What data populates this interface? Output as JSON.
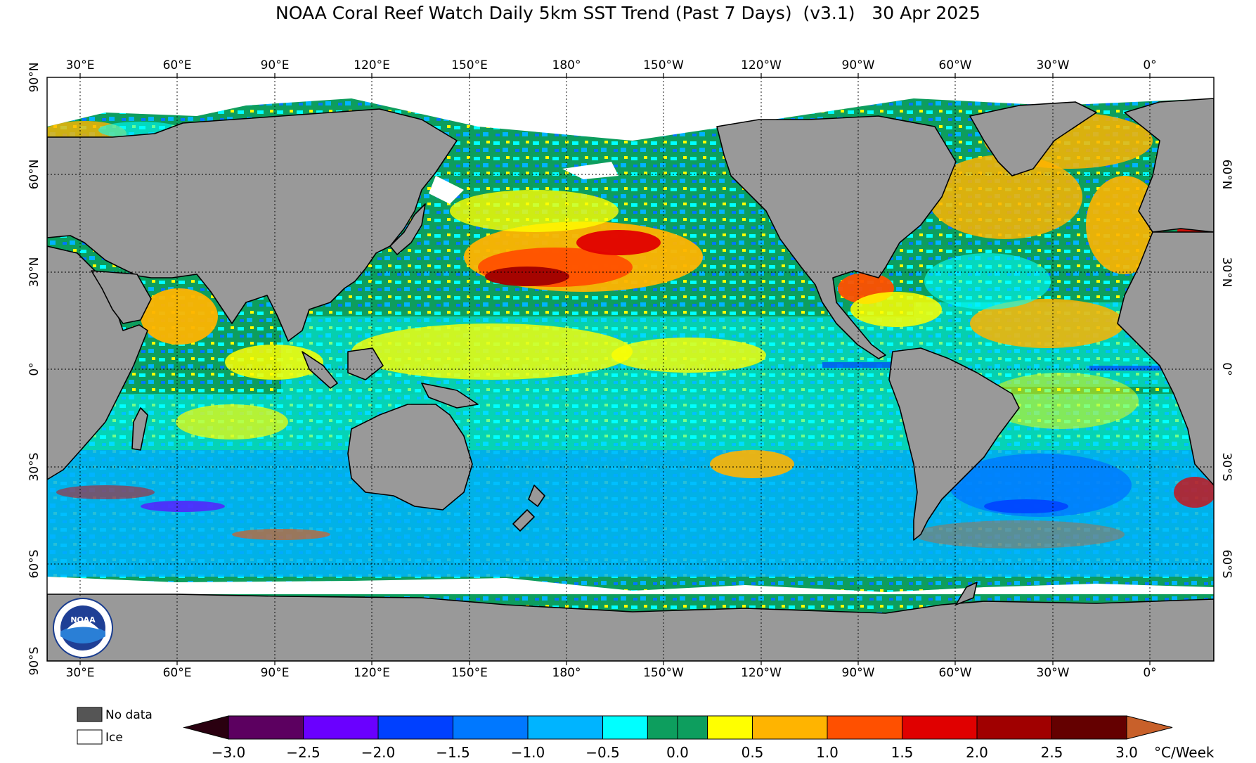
{
  "title": "NOAA Coral Reef Watch Daily 5km SST Trend (Past 7 Days)  (v3.1)   30 Apr 2025",
  "map": {
    "lon_labels": [
      "30°E",
      "60°E",
      "90°E",
      "120°E",
      "150°E",
      "180°",
      "150°W",
      "120°W",
      "90°W",
      "60°W",
      "30°W",
      "0°"
    ],
    "lat_labels_left": [
      "90°N",
      "60°N",
      "30°N",
      "0°",
      "30°S",
      "60°S",
      "90°S"
    ],
    "lat_labels_right": [
      "60°N",
      "30°N",
      "0°",
      "30°S",
      "60°S"
    ],
    "colors": {
      "land": "#999999",
      "ice": "#ffffff",
      "no_data": "#555555",
      "ocean_base": "#0d9e5e"
    },
    "logo_text": "NOAA"
  },
  "legend": {
    "no_data_label": "No data",
    "ice_label": "Ice"
  },
  "colorbar": {
    "unit": "°C/Week",
    "tick_labels": [
      "−3.0",
      "−2.5",
      "−2.0",
      "−1.5",
      "−1.0",
      "−0.5",
      "0.0",
      "0.5",
      "1.0",
      "1.5",
      "2.0",
      "2.5",
      "3.0"
    ],
    "min_color": "#2a0010",
    "max_color": "#c8602a",
    "bins": [
      {
        "from": -3.0,
        "to": -2.5,
        "color": "#5c0060"
      },
      {
        "from": -2.5,
        "to": -2.0,
        "color": "#6a00ff"
      },
      {
        "from": -2.0,
        "to": -1.5,
        "color": "#0040ff"
      },
      {
        "from": -1.5,
        "to": -1.0,
        "color": "#0078ff"
      },
      {
        "from": -1.0,
        "to": -0.5,
        "color": "#00b4ff"
      },
      {
        "from": -0.5,
        "to": -0.2,
        "color": "#00ffff"
      },
      {
        "from": -0.2,
        "to": 0.0,
        "color": "#0d9e5e"
      },
      {
        "from": 0.0,
        "to": 0.2,
        "color": "#0d9e5e"
      },
      {
        "from": 0.2,
        "to": 0.5,
        "color": "#ffff00"
      },
      {
        "from": 0.5,
        "to": 1.0,
        "color": "#ffb400"
      },
      {
        "from": 1.0,
        "to": 1.5,
        "color": "#ff5000"
      },
      {
        "from": 1.5,
        "to": 2.0,
        "color": "#e00000"
      },
      {
        "from": 2.0,
        "to": 2.5,
        "color": "#a00000"
      },
      {
        "from": 2.5,
        "to": 3.0,
        "color": "#640000"
      }
    ]
  }
}
